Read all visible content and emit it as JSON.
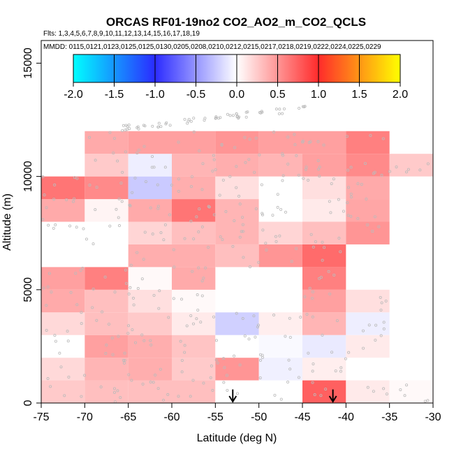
{
  "chart_data": {
    "type": "heatmap",
    "title": "ORCAS RF01-19no2 CO2_AO2_m_CO2_QCLS",
    "flights_line": "Flts: 1,3,4,5,6,7,8,9,10,11,12,13,14,15,16,17,18,19",
    "dates_line": "MMDD: 0115,0121,0123,0125,0125,0130,0205,0208,0210,0212,0215,0217,0218,0219,0222,0224,0225,0229",
    "xlabel": "Latitude (deg N)",
    "ylabel": "Altitude (m)",
    "xlim": [
      -75,
      -30
    ],
    "ylim": [
      0,
      16000
    ],
    "x_ticks": [
      -75,
      -70,
      -65,
      -60,
      -55,
      -50,
      -45,
      -40,
      -35,
      -30
    ],
    "y_ticks": [
      0,
      5000,
      10000,
      15000
    ],
    "colorbar": {
      "min": -2.0,
      "max": 2.0,
      "ticks": [
        "-2.0",
        "-1.5",
        "-1.0",
        "-0.5",
        "0.0",
        "0.5",
        "1.0",
        "1.5",
        "2.0"
      ]
    },
    "lat_bin_width": 5,
    "alt_bin_height": 1000,
    "cells": [
      {
        "lat": -75,
        "alt": 0,
        "value": 0.25
      },
      {
        "lat": -70,
        "alt": 0,
        "value": 0.3
      },
      {
        "lat": -65,
        "alt": 0,
        "value": 0.3
      },
      {
        "lat": -60,
        "alt": 0,
        "value": 0.3
      },
      {
        "lat": -55,
        "alt": 0,
        "value": 0.0
      },
      {
        "lat": -50,
        "alt": 0,
        "value": 0.0
      },
      {
        "lat": -45,
        "alt": 0,
        "value": 0.75
      },
      {
        "lat": -40,
        "alt": 0,
        "value": 0.1
      },
      {
        "lat": -35,
        "alt": 0,
        "value": 0.03
      },
      {
        "lat": -75,
        "alt": 1000,
        "value": 0.18
      },
      {
        "lat": -70,
        "alt": 1000,
        "value": 0.35
      },
      {
        "lat": -65,
        "alt": 1000,
        "value": 0.38
      },
      {
        "lat": -60,
        "alt": 1000,
        "value": 0.25
      },
      {
        "lat": -55,
        "alt": 1000,
        "value": 0.5
      },
      {
        "lat": -50,
        "alt": 1000,
        "value": -0.07
      },
      {
        "lat": -45,
        "alt": 1000,
        "value": 0.08
      },
      {
        "lat": -75,
        "alt": 2000,
        "value": 0.0
      },
      {
        "lat": -70,
        "alt": 2000,
        "value": 0.45
      },
      {
        "lat": -65,
        "alt": 2000,
        "value": 0.38
      },
      {
        "lat": -60,
        "alt": 2000,
        "value": 0.28
      },
      {
        "lat": -55,
        "alt": 2000,
        "value": 0.0
      },
      {
        "lat": -50,
        "alt": 2000,
        "value": -0.03
      },
      {
        "lat": -45,
        "alt": 2000,
        "value": -0.1
      },
      {
        "lat": -40,
        "alt": 2000,
        "value": 0.1
      },
      {
        "lat": -75,
        "alt": 3000,
        "value": 0.18
      },
      {
        "lat": -70,
        "alt": 3000,
        "value": 0.3
      },
      {
        "lat": -65,
        "alt": 3000,
        "value": 0.25
      },
      {
        "lat": -60,
        "alt": 3000,
        "value": 0.1
      },
      {
        "lat": -55,
        "alt": 3000,
        "value": -0.22
      },
      {
        "lat": -50,
        "alt": 3000,
        "value": 0.08
      },
      {
        "lat": -45,
        "alt": 3000,
        "value": 0.35
      },
      {
        "lat": -40,
        "alt": 3000,
        "value": -0.08
      },
      {
        "lat": -75,
        "alt": 4000,
        "value": 0.4
      },
      {
        "lat": -70,
        "alt": 4000,
        "value": 0.3
      },
      {
        "lat": -65,
        "alt": 4000,
        "value": 0.15
      },
      {
        "lat": -60,
        "alt": 4000,
        "value": 0.03
      },
      {
        "lat": -45,
        "alt": 4000,
        "value": 0.45
      },
      {
        "lat": -40,
        "alt": 4000,
        "value": 0.15
      },
      {
        "lat": -75,
        "alt": 5000,
        "value": 0.45
      },
      {
        "lat": -70,
        "alt": 5000,
        "value": 0.6
      },
      {
        "lat": -65,
        "alt": 5000,
        "value": 0.03
      },
      {
        "lat": -60,
        "alt": 5000,
        "value": 0.4
      },
      {
        "lat": -45,
        "alt": 5000,
        "value": 0.6
      },
      {
        "lat": -65,
        "alt": 6000,
        "value": 0.38
      },
      {
        "lat": -60,
        "alt": 6000,
        "value": 0.38
      },
      {
        "lat": -55,
        "alt": 6000,
        "value": 0.3
      },
      {
        "lat": -50,
        "alt": 6000,
        "value": 0.5
      },
      {
        "lat": -45,
        "alt": 6000,
        "value": 0.7
      },
      {
        "lat": -75,
        "alt": 7000,
        "value": 0.0
      },
      {
        "lat": -70,
        "alt": 7000,
        "value": 0.0
      },
      {
        "lat": -65,
        "alt": 7000,
        "value": 0.2
      },
      {
        "lat": -60,
        "alt": 7000,
        "value": 0.3
      },
      {
        "lat": -55,
        "alt": 7000,
        "value": 0.35
      },
      {
        "lat": -50,
        "alt": 7000,
        "value": 0.2
      },
      {
        "lat": -45,
        "alt": 7000,
        "value": 0.3
      },
      {
        "lat": -40,
        "alt": 7000,
        "value": 0.5
      },
      {
        "lat": -75,
        "alt": 8000,
        "value": 0.4
      },
      {
        "lat": -70,
        "alt": 8000,
        "value": 0.05
      },
      {
        "lat": -65,
        "alt": 8000,
        "value": 0.4
      },
      {
        "lat": -60,
        "alt": 8000,
        "value": 0.65
      },
      {
        "lat": -55,
        "alt": 8000,
        "value": 0.35
      },
      {
        "lat": -50,
        "alt": 8000,
        "value": 0.0
      },
      {
        "lat": -45,
        "alt": 8000,
        "value": 0.1
      },
      {
        "lat": -40,
        "alt": 8000,
        "value": 0.42
      },
      {
        "lat": -75,
        "alt": 9000,
        "value": 0.65
      },
      {
        "lat": -70,
        "alt": 9000,
        "value": 0.55
      },
      {
        "lat": -65,
        "alt": 9000,
        "value": -0.25
      },
      {
        "lat": -60,
        "alt": 9000,
        "value": 0.38
      },
      {
        "lat": -55,
        "alt": 9000,
        "value": 0.15
      },
      {
        "lat": -50,
        "alt": 9000,
        "value": 0.0
      },
      {
        "lat": -45,
        "alt": 9000,
        "value": 0.15
      },
      {
        "lat": -40,
        "alt": 9000,
        "value": 0.4
      },
      {
        "lat": -70,
        "alt": 10000,
        "value": 0.25
      },
      {
        "lat": -65,
        "alt": 10000,
        "value": -0.08
      },
      {
        "lat": -60,
        "alt": 10000,
        "value": 0.35
      },
      {
        "lat": -55,
        "alt": 10000,
        "value": 0.38
      },
      {
        "lat": -50,
        "alt": 10000,
        "value": 0.35
      },
      {
        "lat": -45,
        "alt": 10000,
        "value": 0.45
      },
      {
        "lat": -40,
        "alt": 10000,
        "value": 0.55
      },
      {
        "lat": -35,
        "alt": 10000,
        "value": 0.25
      },
      {
        "lat": -70,
        "alt": 11000,
        "value": 0.4
      },
      {
        "lat": -65,
        "alt": 11000,
        "value": 0.45
      },
      {
        "lat": -60,
        "alt": 11000,
        "value": 0.45
      },
      {
        "lat": -55,
        "alt": 11000,
        "value": 0.5
      },
      {
        "lat": -50,
        "alt": 11000,
        "value": 0.45
      },
      {
        "lat": -45,
        "alt": 11000,
        "value": 0.45
      },
      {
        "lat": -40,
        "alt": 11000,
        "value": 0.6
      }
    ],
    "markers": [
      {
        "type": "arrow-down",
        "lat": -53,
        "alt_top": 600,
        "alt_bottom": 0
      },
      {
        "type": "arrow-down",
        "lat": -41.5,
        "alt_top": 600,
        "alt_bottom": 0
      }
    ]
  }
}
